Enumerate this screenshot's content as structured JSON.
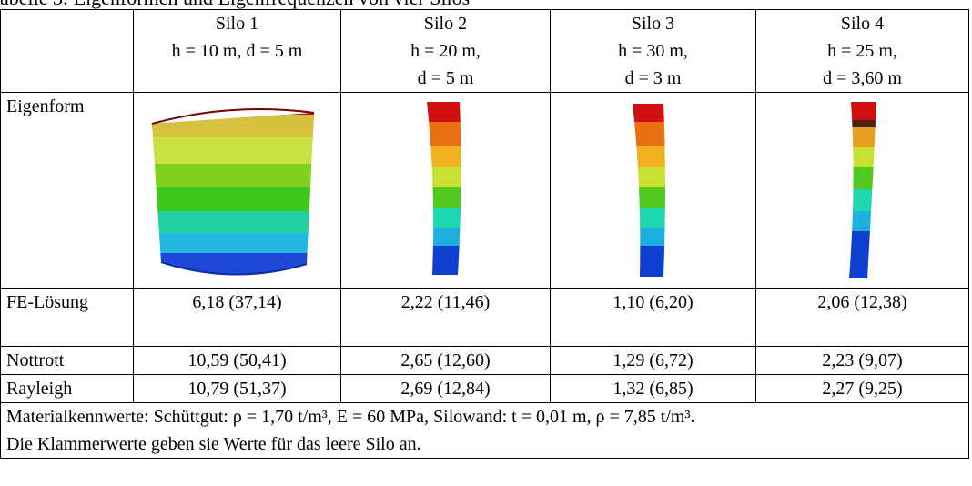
{
  "caption": "abelle 3: Eigenformen und Eigenfrequenzen von vier Silos",
  "silos": [
    {
      "name": "Silo 1",
      "dims": [
        "h = 10 m, d = 5 m"
      ]
    },
    {
      "name": "Silo 2",
      "dims": [
        "h = 20 m,",
        "d = 5 m"
      ]
    },
    {
      "name": "Silo 3",
      "dims": [
        "h = 30 m,",
        "d = 3 m"
      ]
    },
    {
      "name": "Silo 4",
      "dims": [
        "h = 25 m,",
        "d = 3,60 m"
      ]
    }
  ],
  "rows": [
    {
      "label": "Eigenform",
      "image_description": "mode shape contour plots"
    },
    {
      "label": "FE-Lösung",
      "values": [
        "6,18 (37,14)",
        "2,22 (11,46)",
        "1,10 (6,20)",
        "2,06 (12,38)"
      ]
    },
    {
      "label": "Nottrott",
      "values": [
        "10,59 (50,41)",
        "2,65 (12,60)",
        "1,29 (6,72)",
        "2,23 (9,07)"
      ]
    },
    {
      "label": "Rayleigh",
      "values": [
        "10,79 (51,37)",
        "2,69 (12,84)",
        "1,32 (6,85)",
        "2,27 (9,25)"
      ]
    }
  ],
  "note": {
    "line1": "Materialkennwerte: Schüttgut: ρ = 1,70 t/m³, E = 60 MPa, Silowand: t = 0,01 m, ρ = 7,85 t/m³.",
    "line2": "Die Klammerwerte geben sie Werte für das leere Silo an."
  },
  "colors": {
    "contour_bands": [
      "#c01010",
      "#e86a10",
      "#f0c020",
      "#c8e040",
      "#50c020",
      "#20d8b8",
      "#20b0e0",
      "#1040d0"
    ]
  }
}
